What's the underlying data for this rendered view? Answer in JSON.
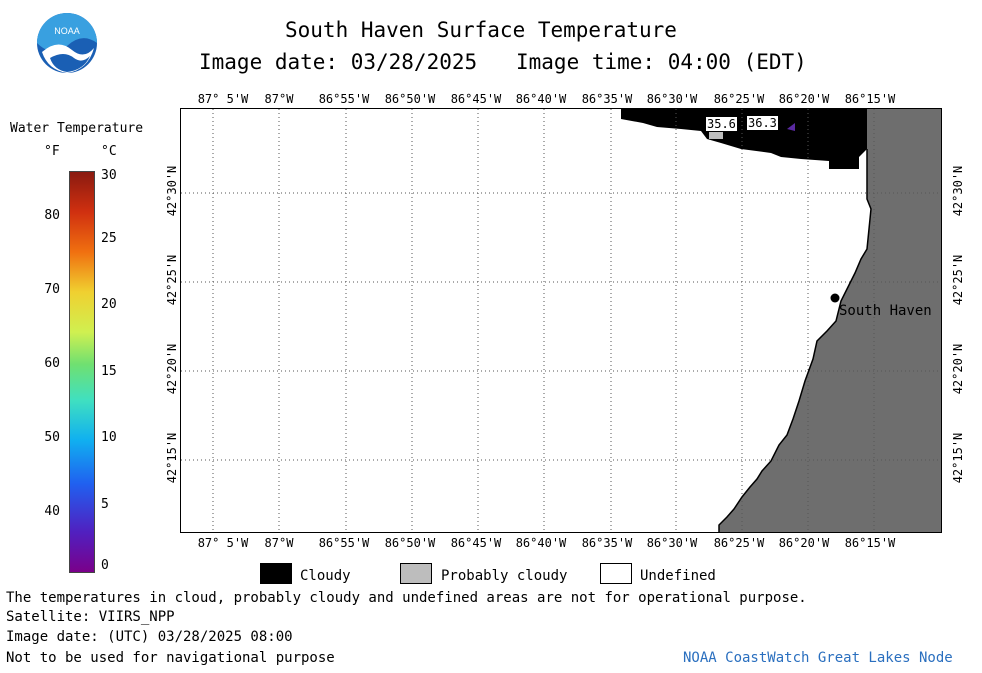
{
  "header": {
    "title": "South Haven Surface Temperature",
    "image_date": "Image date: 03/28/2025",
    "image_time": "Image time: 04:00 (EDT)",
    "logo_text": "NOAA"
  },
  "colorbar": {
    "title": "Water Temperature",
    "unit_f": "°F",
    "unit_c": "°C",
    "f_ticks": [
      "80",
      "70",
      "60",
      "50",
      "40"
    ],
    "c_ticks": [
      "30",
      "25",
      "20",
      "15",
      "10",
      "5",
      "0"
    ]
  },
  "map": {
    "lon_labels": [
      "87° 5'W",
      "87°W",
      "86°55'W",
      "86°50'W",
      "86°45'W",
      "86°40'W",
      "86°35'W",
      "86°30'W",
      "86°25'W",
      "86°20'W",
      "86°15'W"
    ],
    "lat_labels": [
      "42°30'N",
      "42°25'N",
      "42°20'N",
      "42°15'N"
    ],
    "city": "South Haven",
    "temp_labels": [
      "35.6",
      "36.3"
    ],
    "land_color": "#6e6e6e",
    "cloud_color": "#000000"
  },
  "legend": {
    "cloudy": "Cloudy",
    "probably_cloudy": "Probably cloudy",
    "undefined": "Undefined"
  },
  "footer": {
    "disclaimer": "The temperatures in cloud, probably cloudy and undefined areas are not for operational purpose.",
    "satellite": "Satellite: VIIRS_NPP",
    "utc_date": "Image date: (UTC) 03/28/2025  08:00",
    "nav_warning": "Not to be used for navigational purpose",
    "credit": "NOAA CoastWatch Great Lakes Node"
  }
}
